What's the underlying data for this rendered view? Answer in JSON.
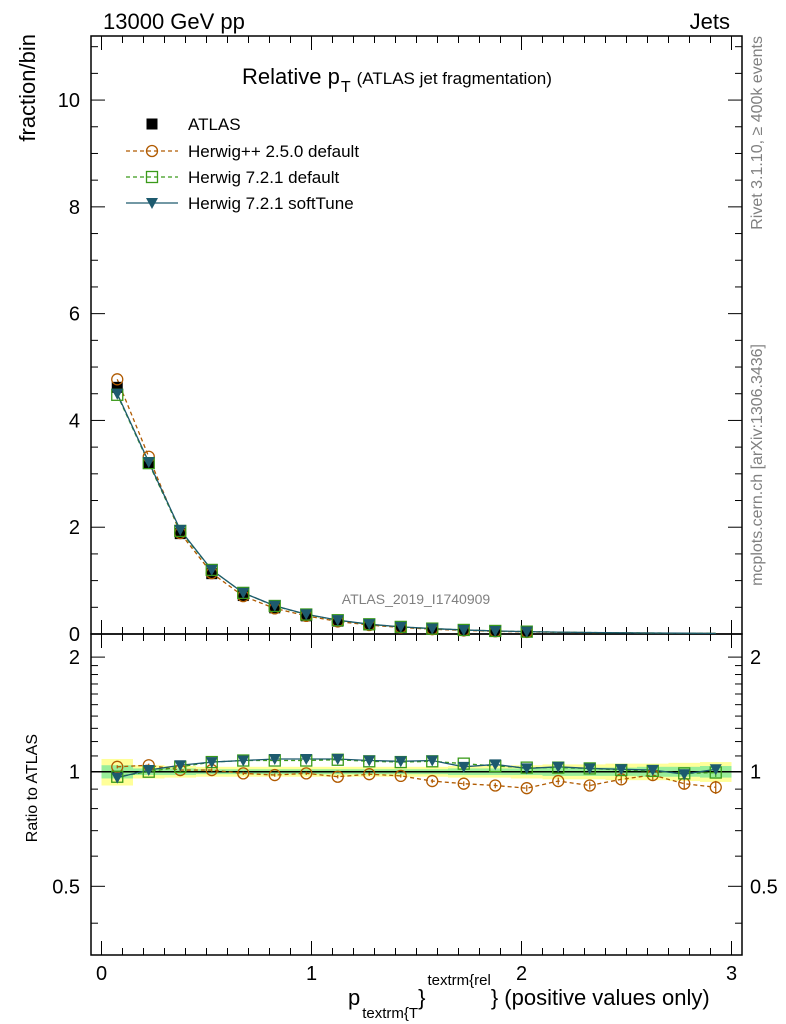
{
  "header": {
    "left": "13000 GeV pp",
    "right": "Jets"
  },
  "side_texts": {
    "rivet": "Rivet 3.1.10, ≥ 400k events",
    "mcplots": "mcplots.cern.ch [arXiv:1306.3436]"
  },
  "chart_data": {
    "type": "scatter",
    "title_main": "Relative p",
    "title_sub": "T",
    "title_rest": "(ATLAS jet fragmentation)",
    "analysis_id": "ATLAS_2019_I1740909",
    "ylabel": "fraction/bin",
    "ratio_ylabel": "Ratio to ATLAS",
    "xlabel_main": "p",
    "xlabel_sub": "textrm{T",
    "xlabel_brace_close": "}",
    "xlabel_sup": "textrm{rel",
    "xlabel_rest": "} (positive values only)",
    "xlim": [
      -0.05,
      3.05
    ],
    "ylim": [
      0,
      11.2
    ],
    "ratio_ylim": [
      0.33,
      2.3
    ],
    "x_ticks": [
      0,
      1,
      2,
      3
    ],
    "x_tick_labels": [
      "0",
      "1",
      "2",
      "3"
    ],
    "y_ticks": [
      0,
      2,
      4,
      6,
      8,
      10
    ],
    "y_tick_labels": [
      "0",
      "2",
      "4",
      "6",
      "8",
      "10"
    ],
    "ratio_ticks": [
      0.5,
      1,
      2
    ],
    "ratio_tick_labels": [
      "0.5",
      "1",
      "2"
    ],
    "x": [
      0.075,
      0.225,
      0.375,
      0.525,
      0.675,
      0.825,
      0.975,
      1.125,
      1.275,
      1.425,
      1.575,
      1.725,
      1.875,
      2.025,
      2.175,
      2.325,
      2.475,
      2.625,
      2.775,
      2.925
    ],
    "bin_width": 0.15,
    "band_inner": [
      0.04,
      0.02,
      0.02,
      0.015,
      0.015,
      0.015,
      0.015,
      0.015,
      0.015,
      0.015,
      0.015,
      0.02,
      0.02,
      0.02,
      0.025,
      0.025,
      0.025,
      0.03,
      0.03,
      0.035
    ],
    "band_outer": [
      0.08,
      0.04,
      0.035,
      0.03,
      0.03,
      0.03,
      0.03,
      0.03,
      0.03,
      0.03,
      0.03,
      0.035,
      0.035,
      0.04,
      0.045,
      0.045,
      0.05,
      0.05,
      0.055,
      0.06
    ],
    "series": [
      {
        "name": "ATLAS",
        "marker": "square-filled",
        "color": "#000000",
        "values": [
          4.62,
          3.2,
          1.88,
          1.13,
          0.72,
          0.49,
          0.34,
          0.24,
          0.17,
          0.125,
          0.095,
          0.072,
          0.055,
          0.043,
          0.034,
          0.027,
          0.022,
          0.018,
          0.015,
          0.012
        ]
      },
      {
        "name": "Herwig++ 2.5.0 default",
        "marker": "circle-open",
        "color": "#B05A00",
        "values": [
          4.77,
          3.32,
          1.89,
          1.14,
          0.71,
          0.48,
          0.34,
          0.235,
          0.168,
          0.122,
          0.09,
          0.067,
          0.051,
          0.039,
          0.032,
          0.025,
          0.021,
          0.017,
          0.014,
          0.011
        ],
        "ratio": [
          1.03,
          1.04,
          1.01,
          1.01,
          0.99,
          0.98,
          0.99,
          0.97,
          0.985,
          0.975,
          0.945,
          0.93,
          0.92,
          0.905,
          0.945,
          0.92,
          0.955,
          0.98,
          0.93,
          0.91
        ],
        "ratio_err": [
          0.01,
          0.01,
          0.01,
          0.01,
          0.01,
          0.01,
          0.01,
          0.01,
          0.01,
          0.01,
          0.012,
          0.013,
          0.015,
          0.017,
          0.02,
          0.022,
          0.025,
          0.028,
          0.032,
          0.036
        ]
      },
      {
        "name": "Herwig 7.2.1 default",
        "marker": "square-open",
        "color": "#3A9A1A",
        "values": [
          4.48,
          3.2,
          1.93,
          1.2,
          0.77,
          0.525,
          0.365,
          0.258,
          0.182,
          0.133,
          0.101,
          0.076,
          0.057,
          0.044,
          0.035,
          0.028,
          0.022,
          0.018,
          0.015,
          0.012
        ],
        "ratio": [
          0.97,
          1.0,
          1.03,
          1.06,
          1.07,
          1.07,
          1.07,
          1.075,
          1.065,
          1.06,
          1.065,
          1.05,
          1.035,
          1.025,
          1.025,
          1.02,
          1.01,
          1.005,
          0.99,
          0.995
        ],
        "ratio_err": [
          0.008,
          0.008,
          0.008,
          0.008,
          0.008,
          0.008,
          0.008,
          0.008,
          0.008,
          0.008,
          0.01,
          0.01,
          0.012,
          0.014,
          0.016,
          0.018,
          0.02,
          0.022,
          0.024,
          0.026
        ]
      },
      {
        "name": "Herwig 7.2.1 softTune",
        "marker": "triangle-down-filled",
        "color": "#1D5A6E",
        "values": [
          4.5,
          3.22,
          1.95,
          1.2,
          0.77,
          0.53,
          0.37,
          0.26,
          0.184,
          0.133,
          0.102,
          0.076,
          0.057,
          0.044,
          0.035,
          0.028,
          0.022,
          0.018,
          0.015,
          0.012
        ],
        "ratio": [
          0.965,
          1.01,
          1.04,
          1.06,
          1.07,
          1.08,
          1.08,
          1.08,
          1.07,
          1.065,
          1.07,
          1.03,
          1.045,
          1.02,
          1.03,
          1.02,
          1.015,
          1.01,
          0.985,
          1.015
        ],
        "ratio_err": [
          0.008,
          0.008,
          0.008,
          0.008,
          0.008,
          0.008,
          0.008,
          0.008,
          0.008,
          0.008,
          0.01,
          0.01,
          0.012,
          0.014,
          0.016,
          0.018,
          0.02,
          0.022,
          0.024,
          0.026
        ]
      }
    ]
  }
}
